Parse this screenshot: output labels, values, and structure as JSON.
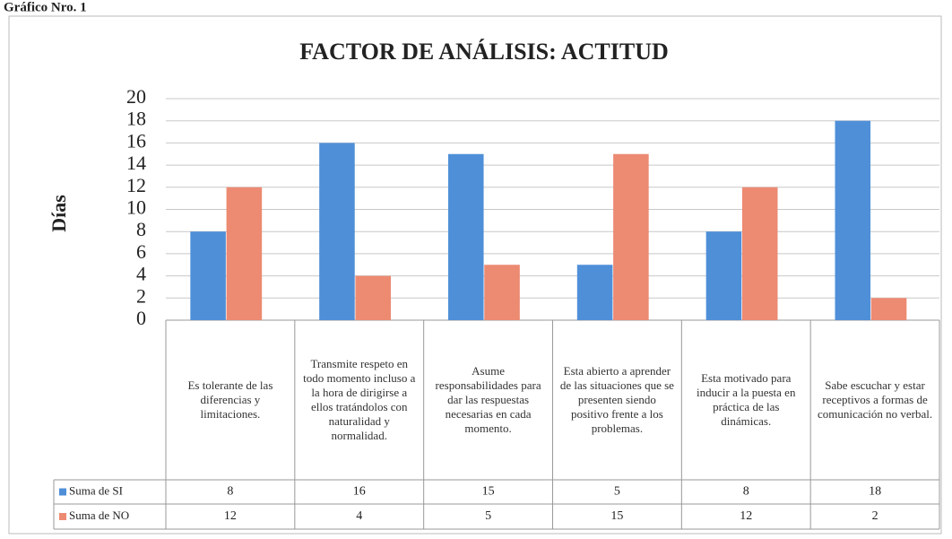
{
  "caption": "Gráfico Nro. 1",
  "chart_data": {
    "type": "bar",
    "title": "FACTOR DE ANÁLISIS: ACTITUD",
    "y_label": "Días",
    "categories": [
      "Es tolerante de las diferencias y limitaciones.",
      "Transmite respeto en todo momento incluso a la hora de dirigirse a ellos tratándolos con naturalidad y normalidad.",
      "Asume responsabilidades para dar las respuestas necesarias en cada momento.",
      "Esta abierto a aprender de las situaciones que se presenten siendo positivo frente a los problemas.",
      "Esta motivado para inducir a la puesta en práctica de las dinámicas.",
      "Sabe escuchar y estar receptivos a formas de comunicación no verbal."
    ],
    "series": [
      {
        "name": "Suma de SI",
        "color": "#4f8fd8",
        "values": [
          8,
          16,
          15,
          5,
          8,
          18
        ]
      },
      {
        "name": "Suma de NO",
        "color": "#ec8a72",
        "values": [
          12,
          4,
          5,
          15,
          12,
          2
        ]
      }
    ],
    "ylim": [
      0,
      20
    ],
    "yticks": [
      0,
      2,
      4,
      6,
      8,
      10,
      12,
      14,
      16,
      18,
      20
    ],
    "grid": true
  }
}
